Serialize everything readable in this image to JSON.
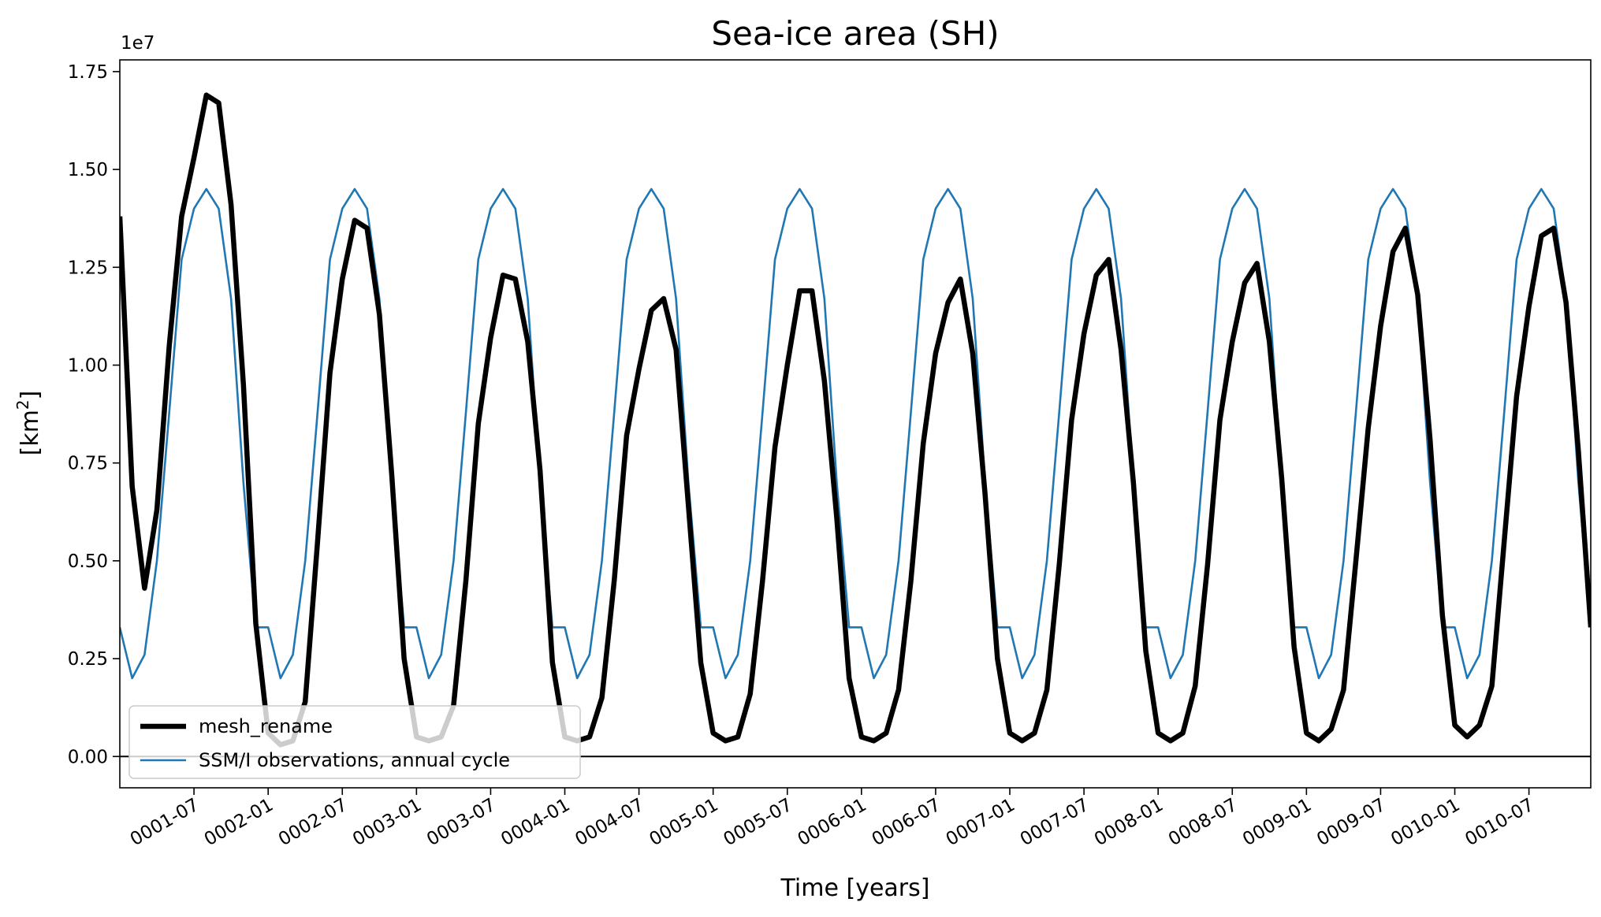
{
  "chart_data": {
    "type": "line",
    "title": "Sea-ice area (SH)",
    "xlabel": "Time [years]",
    "ylabel_main": "[km",
    "ylabel_sup": "2",
    "ylabel_end": "]",
    "y_offset_label": "1e7",
    "ylim": [
      -0.08,
      1.78
    ],
    "yticks": [
      0.0,
      0.25,
      0.5,
      0.75,
      1.0,
      1.25,
      1.5,
      1.75
    ],
    "ytick_labels": [
      "0.00",
      "0.25",
      "0.50",
      "0.75",
      "1.00",
      "1.25",
      "1.50",
      "1.75"
    ],
    "xlim_months": [
      0,
      119
    ],
    "xticks_months": [
      6,
      12,
      18,
      24,
      30,
      36,
      42,
      48,
      54,
      60,
      66,
      72,
      78,
      84,
      90,
      96,
      102,
      108,
      114
    ],
    "xtick_labels": [
      "0001-07",
      "0002-01",
      "0002-07",
      "0003-01",
      "0003-07",
      "0004-01",
      "0004-07",
      "0005-01",
      "0005-07",
      "0006-01",
      "0006-07",
      "0007-01",
      "0007-07",
      "0008-01",
      "0008-07",
      "0009-01",
      "0009-07",
      "0010-01",
      "0010-07"
    ],
    "zero_line": true,
    "legend_position": "lower-left",
    "series": [
      {
        "name": "mesh_rename",
        "color": "#000000",
        "values": [
          1.38,
          0.69,
          0.43,
          0.63,
          1.05,
          1.38,
          1.53,
          1.69,
          1.67,
          1.41,
          0.95,
          0.34,
          0.06,
          0.03,
          0.04,
          0.14,
          0.55,
          0.98,
          1.22,
          1.37,
          1.35,
          1.13,
          0.72,
          0.25,
          0.05,
          0.04,
          0.05,
          0.13,
          0.45,
          0.85,
          1.07,
          1.23,
          1.22,
          1.06,
          0.73,
          0.24,
          0.05,
          0.04,
          0.05,
          0.15,
          0.45,
          0.82,
          0.99,
          1.14,
          1.17,
          1.04,
          0.64,
          0.24,
          0.06,
          0.04,
          0.05,
          0.16,
          0.45,
          0.79,
          1.0,
          1.19,
          1.19,
          0.96,
          0.61,
          0.2,
          0.05,
          0.04,
          0.06,
          0.17,
          0.45,
          0.8,
          1.03,
          1.16,
          1.22,
          1.03,
          0.67,
          0.25,
          0.06,
          0.04,
          0.06,
          0.17,
          0.49,
          0.86,
          1.08,
          1.23,
          1.27,
          1.04,
          0.7,
          0.27,
          0.06,
          0.04,
          0.06,
          0.18,
          0.49,
          0.86,
          1.06,
          1.21,
          1.26,
          1.06,
          0.71,
          0.28,
          0.06,
          0.04,
          0.07,
          0.17,
          0.5,
          0.84,
          1.1,
          1.29,
          1.35,
          1.18,
          0.81,
          0.36,
          0.08,
          0.05,
          0.08,
          0.18,
          0.55,
          0.92,
          1.15,
          1.33,
          1.35,
          1.16,
          0.78,
          0.33
        ]
      },
      {
        "name": "SSM/I observations, annual cycle",
        "color": "#1f77b4",
        "values": [
          0.33,
          0.2,
          0.26,
          0.5,
          0.88,
          1.27,
          1.4,
          1.45,
          1.4,
          1.17,
          0.7,
          0.33,
          0.33,
          0.2,
          0.26,
          0.5,
          0.88,
          1.27,
          1.4,
          1.45,
          1.4,
          1.17,
          0.7,
          0.33,
          0.33,
          0.2,
          0.26,
          0.5,
          0.88,
          1.27,
          1.4,
          1.45,
          1.4,
          1.17,
          0.7,
          0.33,
          0.33,
          0.2,
          0.26,
          0.5,
          0.88,
          1.27,
          1.4,
          1.45,
          1.4,
          1.17,
          0.7,
          0.33,
          0.33,
          0.2,
          0.26,
          0.5,
          0.88,
          1.27,
          1.4,
          1.45,
          1.4,
          1.17,
          0.7,
          0.33,
          0.33,
          0.2,
          0.26,
          0.5,
          0.88,
          1.27,
          1.4,
          1.45,
          1.4,
          1.17,
          0.7,
          0.33,
          0.33,
          0.2,
          0.26,
          0.5,
          0.88,
          1.27,
          1.4,
          1.45,
          1.4,
          1.17,
          0.7,
          0.33,
          0.33,
          0.2,
          0.26,
          0.5,
          0.88,
          1.27,
          1.4,
          1.45,
          1.4,
          1.17,
          0.7,
          0.33,
          0.33,
          0.2,
          0.26,
          0.5,
          0.88,
          1.27,
          1.4,
          1.45,
          1.4,
          1.17,
          0.7,
          0.33,
          0.33,
          0.2,
          0.26,
          0.5,
          0.88,
          1.27,
          1.4,
          1.45,
          1.4,
          1.17,
          0.7,
          0.33
        ]
      }
    ]
  }
}
